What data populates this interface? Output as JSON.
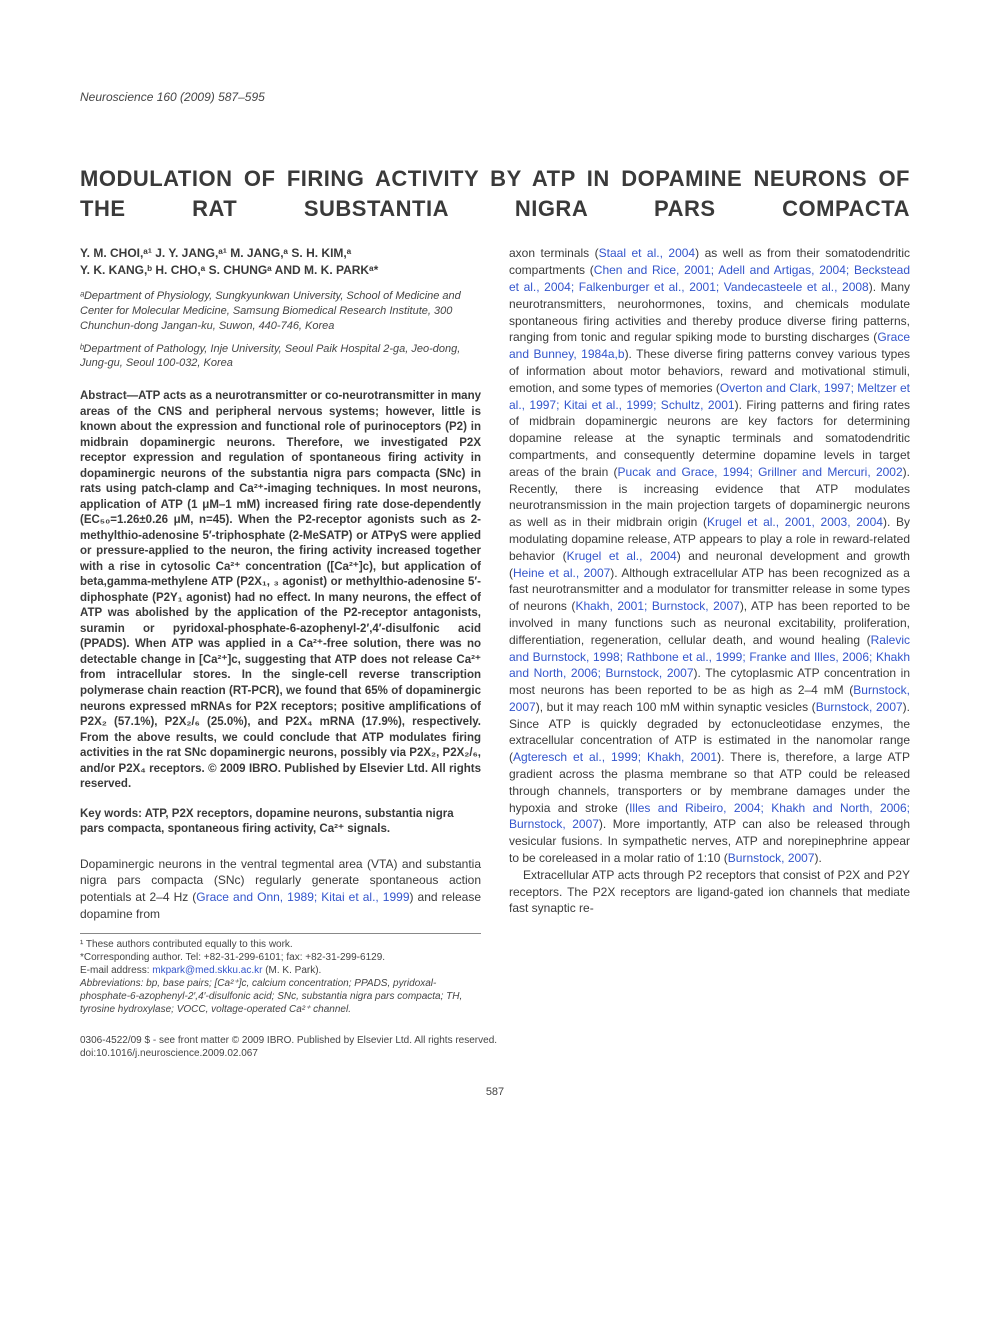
{
  "journal_line": "Neuroscience 160 (2009) 587–595",
  "title": "MODULATION OF FIRING ACTIVITY BY ATP IN DOPAMINE NEURONS OF THE RAT SUBSTANTIA NIGRA PARS COMPACTA",
  "authors_line1": "Y. M. CHOI,ᵃ¹ J. Y. JANG,ᵃ¹ M. JANG,ᵃ S. H. KIM,ᵃ",
  "authors_line2": "Y. K. KANG,ᵇ H. CHO,ᵃ S. CHUNGᵃ AND M. K. PARKᵃ*",
  "affil_a": "ᵃDepartment of Physiology, Sungkyunkwan University, School of Medicine and Center for Molecular Medicine, Samsung Biomedical Research Institute, 300 Chunchun-dong Jangan-ku, Suwon, 440-746, Korea",
  "affil_b": "ᵇDepartment of Pathology, Inje University, Seoul Paik Hospital 2-ga, Jeo-dong, Jung-gu, Seoul 100-032, Korea",
  "abstract": "Abstract—ATP acts as a neurotransmitter or co-neurotransmitter in many areas of the CNS and peripheral nervous systems; however, little is known about the expression and functional role of purinoceptors (P2) in midbrain dopaminergic neurons. Therefore, we investigated P2X receptor expression and regulation of spontaneous firing activity in dopaminergic neurons of the substantia nigra pars compacta (SNc) in rats using patch-clamp and Ca²⁺-imaging techniques. In most neurons, application of ATP (1 μM–1 mM) increased firing rate dose-dependently (EC₅₀=1.26±0.26 μM, n=45). When the P2-receptor agonists such as 2-methylthio-adenosine 5′-triphosphate (2-MeSATP) or ATPγS were applied or pressure-applied to the neuron, the firing activity increased together with a rise in cytosolic Ca²⁺ concentration ([Ca²⁺]c), but application of beta,gamma-methylene ATP (P2X₁, ₃ agonist) or methylthio-adenosine 5′-diphosphate (P2Y₁ agonist) had no effect. In many neurons, the effect of ATP was abolished by the application of the P2-receptor antagonists, suramin or pyridoxal-phosphate-6-azophenyl-2′,4′-disulfonic acid (PPADS). When ATP was applied in a Ca²⁺-free solution, there was no detectable change in [Ca²⁺]c, suggesting that ATP does not release Ca²⁺ from intracellular stores. In the single-cell reverse transcription polymerase chain reaction (RT-PCR), we found that 65% of dopaminergic neurons expressed mRNAs for P2X receptors; positive amplifications of P2X₂ (57.1%), P2X₂/₆ (25.0%), and P2X₄ mRNA (17.9%), respectively. From the above results, we could conclude that ATP modulates firing activities in the rat SNc dopaminergic neurons, possibly via P2X₂, P2X₂/₆, and/or P2X₄ receptors. © 2009 IBRO. Published by Elsevier Ltd. All rights reserved.",
  "keywords": "Key words: ATP, P2X receptors, dopamine neurons, substantia nigra pars compacta, spontaneous firing activity, Ca²⁺ signals.",
  "intro_plain_1": "Dopaminergic neurons in the ventral tegmental area (VTA) and substantia nigra pars compacta (SNc) regularly generate spontaneous action potentials at 2–4 Hz (",
  "intro_link_1": "Grace and Onn, 1989; Kitai et al., 1999",
  "intro_plain_2": ") and release dopamine from",
  "footnote_1": "¹ These authors contributed equally to this work.",
  "footnote_corr": "*Corresponding author. Tel: +82-31-299-6101; fax: +82-31-299-6129.",
  "footnote_email_label": "E-mail address: ",
  "footnote_email": "mkpark@med.skku.ac.kr",
  "footnote_email_tail": " (M. K. Park).",
  "footnote_abbrev": "Abbreviations: bp, base pairs; [Ca²⁺]c, calcium concentration; PPADS, pyridoxal-phosphate-6-azophenyl-2′,4′-disulfonic acid; SNc, substantia nigra pars compacta; TH, tyrosine hydroxylase; VOCC, voltage-operated Ca²⁺ channel.",
  "right_p1_a": "axon terminals (",
  "right_l1": "Staal et al., 2004",
  "right_p1_b": ") as well as from their somatodendritic compartments (",
  "right_l2": "Chen and Rice, 2001; Adell and Artigas, 2004; Beckstead et al., 2004; Falkenburger et al., 2001; Vandecasteele et al., 2008",
  "right_p1_c": "). Many neurotransmitters, neurohormones, toxins, and chemicals modulate spontaneous firing activities and thereby produce diverse firing patterns, ranging from tonic and regular spiking mode to bursting discharges (",
  "right_l3": "Grace and Bunney, 1984a,b",
  "right_p1_d": "). These diverse firing patterns convey various types of information about motor behaviors, reward and motivational stimuli, emotion, and some types of memories (",
  "right_l4": "Overton and Clark, 1997; Meltzer et al., 1997; Kitai et al., 1999; Schultz, 2001",
  "right_p1_e": "). Firing patterns and firing rates of midbrain dopaminergic neurons are key factors for determining dopamine release at the synaptic terminals and somatodendritic compartments, and consequently determine dopamine levels in target areas of the brain (",
  "right_l5": "Pucak and Grace, 1994; Grillner and Mercuri, 2002",
  "right_p1_f": "). Recently, there is increasing evidence that ATP modulates neurotransmission in the main projection targets of dopaminergic neurons as well as in their midbrain origin (",
  "right_l6": "Krugel et al., 2001, 2003, 2004",
  "right_p1_g": "). By modulating dopamine release, ATP appears to play a role in reward-related behavior (",
  "right_l7": "Krugel et al., 2004",
  "right_p1_h": ") and neuronal development and growth (",
  "right_l8": "Heine et al., 2007",
  "right_p1_i": "). Although extracellular ATP has been recognized as a fast neurotransmitter and a modulator for transmitter release in some types of neurons (",
  "right_l9": "Khakh, 2001; Burnstock, 2007",
  "right_p1_j": "), ATP has been reported to be involved in many functions such as neuronal excitability, proliferation, differentiation, regeneration, cellular death, and wound healing (",
  "right_l10": "Ralevic and Burnstock, 1998; Rathbone et al., 1999; Franke and Illes, 2006; Khakh and North, 2006; Burnstock, 2007",
  "right_p1_k": "). The cytoplasmic ATP concentration in most neurons has been reported to be as high as 2–4 mM (",
  "right_l11": "Burnstock, 2007",
  "right_p1_l": "), but it may reach 100 mM within synaptic vesicles (",
  "right_l12": "Burnstock, 2007",
  "right_p1_m": "). Since ATP is quickly degraded by ectonucleotidase enzymes, the extracellular concentration of ATP is estimated in the nanomolar range (",
  "right_l13": "Agteresch et al., 1999; Khakh, 2001",
  "right_p1_n": "). There is, therefore, a large ATP gradient across the plasma membrane so that ATP could be released through channels, transporters or by membrane damages under the hypoxia and stroke (",
  "right_l14": "Illes and Ribeiro, 2004; Khakh and North, 2006; Burnstock, 2007",
  "right_p1_o": "). More importantly, ATP can also be released through vesicular fusions. In sympathetic nerves, ATP and norepinephrine appear to be coreleased in a molar ratio of 1:10 (",
  "right_l15": "Burnstock, 2007",
  "right_p1_p": ").",
  "right_p2": "Extracellular ATP acts through P2 receptors that consist of P2X and P2Y receptors. The P2X receptors are ligand-gated ion channels that mediate fast synaptic re-",
  "footer_line": "0306-4522/09 $ - see front matter © 2009 IBRO. Published by Elsevier Ltd. All rights reserved.",
  "doi_line": "doi:10.1016/j.neuroscience.2009.02.067",
  "page_number": "587"
}
